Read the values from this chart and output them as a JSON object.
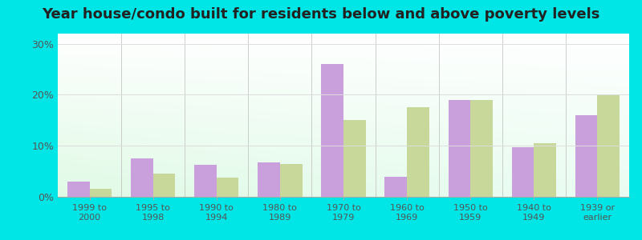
{
  "title": "Year house/condo built for residents below and above poverty levels",
  "categories": [
    "1999 to\n2000",
    "1995 to\n1998",
    "1990 to\n1994",
    "1980 to\n1989",
    "1970 to\n1979",
    "1960 to\n1969",
    "1950 to\n1959",
    "1940 to\n1949",
    "1939 or\nearlier"
  ],
  "below_poverty": [
    3.0,
    7.5,
    6.2,
    6.8,
    26.0,
    4.0,
    19.0,
    9.8,
    16.0
  ],
  "above_poverty": [
    1.5,
    4.5,
    3.8,
    6.5,
    15.0,
    17.5,
    19.0,
    10.5,
    20.0
  ],
  "below_color": "#c9a0dc",
  "above_color": "#c8d89a",
  "background_outer": "#00e5e5",
  "yticks": [
    0,
    10,
    20,
    30
  ],
  "ylim": [
    0,
    32
  ],
  "title_fontsize": 13,
  "bar_width": 0.35
}
